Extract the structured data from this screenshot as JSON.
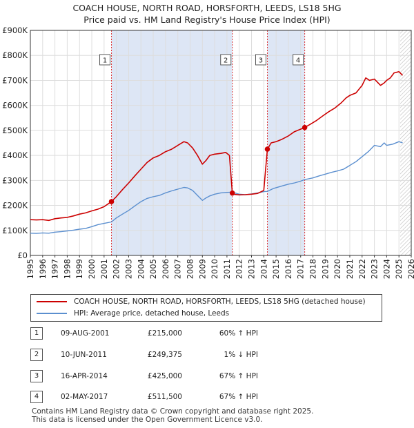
{
  "header": {
    "title": "COACH HOUSE, NORTH ROAD, HORSFORTH, LEEDS, LS18 5HG",
    "subtitle": "Price paid vs. HM Land Registry's House Price Index (HPI)"
  },
  "colors": {
    "property": "#cc0000",
    "hpi": "#5b8fcf",
    "shade": "#dde6f5",
    "grid": "#dddddd",
    "axis": "#333333"
  },
  "chart_data": {
    "type": "line",
    "title": "COACH HOUSE, NORTH ROAD, HORSFORTH, LEEDS, LS18 5HG",
    "subtitle": "Price paid vs. HM Land Registry's House Price Index (HPI)",
    "xlim": [
      1995,
      2026
    ],
    "ylim": [
      0,
      900000
    ],
    "x_ticks": [
      "1995",
      "1996",
      "1997",
      "1998",
      "1999",
      "2000",
      "2001",
      "2002",
      "2003",
      "2004",
      "2005",
      "2006",
      "2007",
      "2008",
      "2009",
      "2010",
      "2011",
      "2012",
      "2013",
      "2014",
      "2015",
      "2016",
      "2017",
      "2018",
      "2019",
      "2020",
      "2021",
      "2022",
      "2023",
      "2024",
      "2025",
      "2026"
    ],
    "y_ticks": [
      {
        "value": 0,
        "label": "£0"
      },
      {
        "value": 100000,
        "label": "£100K"
      },
      {
        "value": 200000,
        "label": "£200K"
      },
      {
        "value": 300000,
        "label": "£300K"
      },
      {
        "value": 400000,
        "label": "£400K"
      },
      {
        "value": 500000,
        "label": "£500K"
      },
      {
        "value": 600000,
        "label": "£600K"
      },
      {
        "value": 700000,
        "label": "£700K"
      },
      {
        "value": 800000,
        "label": "£800K"
      },
      {
        "value": 900000,
        "label": "£900K"
      }
    ],
    "shaded_periods": [
      [
        2001.6,
        2011.44
      ],
      [
        2014.29,
        2017.33
      ]
    ],
    "future_hatch_from": 2025.1,
    "series": [
      {
        "name": "COACH HOUSE, NORTH ROAD, HORSFORTH, LEEDS, LS18 5HG (detached house)",
        "x": [
          1995.0,
          1995.5,
          1996.0,
          1996.5,
          1997.0,
          1997.5,
          1998.0,
          1998.5,
          1999.0,
          1999.5,
          2000.0,
          2000.5,
          2001.0,
          2001.3,
          2001.6,
          2002.0,
          2002.5,
          2003.0,
          2003.5,
          2004.0,
          2004.5,
          2005.0,
          2005.5,
          2006.0,
          2006.5,
          2007.0,
          2007.5,
          2007.8,
          2008.2,
          2008.6,
          2009.0,
          2009.3,
          2009.6,
          2010.0,
          2010.5,
          2010.9,
          2011.2,
          2011.44,
          2011.6,
          2012.0,
          2012.5,
          2013.0,
          2013.5,
          2014.0,
          2014.29,
          2014.6,
          2015.0,
          2015.5,
          2016.0,
          2016.5,
          2017.0,
          2017.33,
          2017.8,
          2018.3,
          2018.8,
          2019.3,
          2019.8,
          2020.3,
          2020.7,
          2021.0,
          2021.5,
          2022.0,
          2022.3,
          2022.6,
          2023.0,
          2023.5,
          2023.8,
          2024.0,
          2024.3,
          2024.6,
          2025.0,
          2025.3
        ],
        "values": [
          143000,
          142000,
          143000,
          140000,
          147000,
          150000,
          152000,
          158000,
          165000,
          170000,
          178000,
          185000,
          195000,
          205000,
          215000,
          235000,
          263000,
          290000,
          318000,
          345000,
          372000,
          390000,
          400000,
          415000,
          425000,
          440000,
          455000,
          450000,
          430000,
          400000,
          365000,
          380000,
          400000,
          405000,
          408000,
          412000,
          400000,
          249375,
          244000,
          242000,
          243000,
          245000,
          248000,
          260000,
          425000,
          450000,
          455000,
          465000,
          478000,
          495000,
          505000,
          511500,
          525000,
          540000,
          558000,
          575000,
          590000,
          610000,
          630000,
          640000,
          650000,
          680000,
          710000,
          700000,
          705000,
          680000,
          690000,
          700000,
          710000,
          730000,
          735000,
          720000
        ]
      },
      {
        "name": "HPI: Average price, detached house, Leeds",
        "x": [
          1995.0,
          1995.5,
          1996.0,
          1996.5,
          1997.0,
          1997.5,
          1998.0,
          1998.5,
          1999.0,
          1999.5,
          2000.0,
          2000.5,
          2001.0,
          2001.6,
          2002.0,
          2002.5,
          2003.0,
          2003.5,
          2004.0,
          2004.5,
          2005.0,
          2005.5,
          2006.0,
          2006.5,
          2007.0,
          2007.5,
          2007.8,
          2008.2,
          2008.6,
          2009.0,
          2009.3,
          2009.6,
          2010.0,
          2010.5,
          2011.0,
          2011.44,
          2012.0,
          2012.5,
          2013.0,
          2013.5,
          2014.0,
          2014.29,
          2014.8,
          2015.5,
          2016.0,
          2016.5,
          2017.0,
          2017.33,
          2018.0,
          2018.5,
          2019.0,
          2019.5,
          2020.0,
          2020.5,
          2021.0,
          2021.5,
          2022.0,
          2022.5,
          2023.0,
          2023.5,
          2023.8,
          2024.0,
          2024.5,
          2025.0,
          2025.3
        ],
        "values": [
          89000,
          88000,
          90000,
          89000,
          93000,
          95000,
          98000,
          101000,
          105000,
          108000,
          115000,
          123000,
          128000,
          134000,
          150000,
          165000,
          180000,
          198000,
          215000,
          228000,
          235000,
          240000,
          250000,
          258000,
          265000,
          272000,
          270000,
          260000,
          240000,
          220000,
          230000,
          238000,
          245000,
          250000,
          252000,
          253000,
          245000,
          243000,
          246000,
          250000,
          255000,
          256000,
          268000,
          278000,
          285000,
          290000,
          297000,
          303000,
          310000,
          318000,
          325000,
          332000,
          338000,
          345000,
          360000,
          375000,
          395000,
          415000,
          440000,
          435000,
          450000,
          440000,
          445000,
          455000,
          450000
        ]
      }
    ],
    "sales": [
      {
        "num": "1",
        "x": 2001.6,
        "price": 215000
      },
      {
        "num": "2",
        "x": 2011.44,
        "price": 249375
      },
      {
        "num": "3",
        "x": 2014.29,
        "price": 425000
      },
      {
        "num": "4",
        "x": 2017.33,
        "price": 511500
      }
    ]
  },
  "legend": {
    "property_label": "COACH HOUSE, NORTH ROAD, HORSFORTH, LEEDS, LS18 5HG (detached house)",
    "hpi_label": "HPI: Average price, detached house, Leeds"
  },
  "sales_table": [
    {
      "num": "1",
      "date": "09-AUG-2001",
      "price": "£215,000",
      "hpi": "60% ↑ HPI"
    },
    {
      "num": "2",
      "date": "10-JUN-2011",
      "price": "£249,375",
      "hpi": "1% ↓ HPI"
    },
    {
      "num": "3",
      "date": "16-APR-2014",
      "price": "£425,000",
      "hpi": "67% ↑ HPI"
    },
    {
      "num": "4",
      "date": "02-MAY-2017",
      "price": "£511,500",
      "hpi": "67% ↑ HPI"
    }
  ],
  "footer": {
    "line1": "Contains HM Land Registry data © Crown copyright and database right 2025.",
    "line2": "This data is licensed under the Open Government Licence v3.0."
  }
}
